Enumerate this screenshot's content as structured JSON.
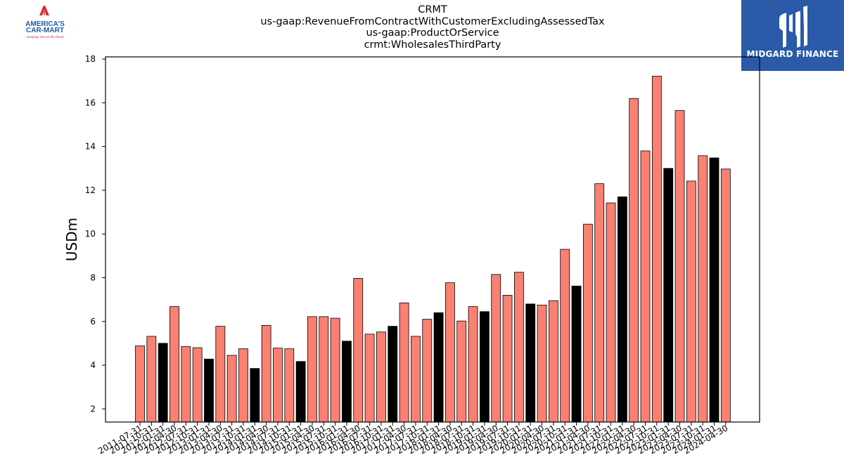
{
  "header": {
    "title_lines": [
      "CRMT",
      "us-gaap:RevenueFromContractWithCustomerExcludingAssessedTax",
      "us-gaap:ProductOrService",
      "crmt:WholesalesThirdParty"
    ]
  },
  "logos": {
    "left": {
      "name": "AMERICA'S CAR-MART",
      "line1": "AMERICA'S",
      "line2": "CAR-MART",
      "tagline": "Keeping You on the Road",
      "colors": {
        "red": "#d62b2b",
        "blue": "#1e5aa8"
      }
    },
    "right": {
      "name": "MIDGARD FINANCE",
      "background": "#2a5aa8"
    }
  },
  "chart_data": {
    "type": "bar",
    "ylabel": "USDm",
    "xlabel": "",
    "ylim": [
      1.4,
      18.1
    ],
    "yticks": [
      2,
      4,
      6,
      8,
      10,
      12,
      14,
      16,
      18
    ],
    "colors": {
      "default": "#fa8072",
      "highlight": "#000000",
      "edge": "#000000"
    },
    "categories": [
      "2011-07-31",
      "2011-10-31",
      "2012-01-31",
      "2012-04-30",
      "2012-07-31",
      "2012-10-31",
      "2013-01-31",
      "2013-04-30",
      "2013-07-31",
      "2013-10-31",
      "2014-01-31",
      "2014-04-30",
      "2014-07-31",
      "2014-10-31",
      "2015-01-31",
      "2015-04-30",
      "2015-07-31",
      "2015-10-31",
      "2016-01-31",
      "2016-04-30",
      "2016-07-31",
      "2016-10-31",
      "2017-01-31",
      "2017-04-30",
      "2017-07-31",
      "2017-10-31",
      "2018-01-31",
      "2018-04-30",
      "2018-07-31",
      "2018-10-31",
      "2019-01-31",
      "2019-04-30",
      "2019-07-31",
      "2019-10-31",
      "2020-01-31",
      "2020-04-30",
      "2020-07-31",
      "2020-10-31",
      "2021-01-31",
      "2021-04-30",
      "2021-07-31",
      "2021-10-31",
      "2022-01-31",
      "2022-04-30",
      "2022-07-31",
      "2022-10-31",
      "2023-01-31",
      "2023-04-30",
      "2023-07-31",
      "2023-10-31",
      "2024-01-31",
      "2024-04-30"
    ],
    "values": [
      4.88,
      5.32,
      5.0,
      6.68,
      4.85,
      4.8,
      4.28,
      5.78,
      4.45,
      4.75,
      3.85,
      5.82,
      4.78,
      4.75,
      4.17,
      6.22,
      6.22,
      6.15,
      5.1,
      7.97,
      5.42,
      5.52,
      5.78,
      6.85,
      5.32,
      6.1,
      6.4,
      7.77,
      6.02,
      6.68,
      6.45,
      8.15,
      7.2,
      8.25,
      6.8,
      6.75,
      6.95,
      9.3,
      7.62,
      10.45,
      12.3,
      11.42,
      11.7,
      16.2,
      13.8,
      17.22,
      13.0,
      15.65,
      12.42,
      13.58,
      13.48,
      12.97
    ],
    "highlight": [
      false,
      false,
      true,
      false,
      false,
      false,
      true,
      false,
      false,
      false,
      true,
      false,
      false,
      false,
      true,
      false,
      false,
      false,
      true,
      false,
      false,
      false,
      true,
      false,
      false,
      false,
      true,
      false,
      false,
      false,
      true,
      false,
      false,
      false,
      true,
      false,
      false,
      false,
      true,
      false,
      false,
      false,
      true,
      false,
      false,
      false,
      true,
      false,
      false,
      false,
      true,
      false
    ]
  }
}
